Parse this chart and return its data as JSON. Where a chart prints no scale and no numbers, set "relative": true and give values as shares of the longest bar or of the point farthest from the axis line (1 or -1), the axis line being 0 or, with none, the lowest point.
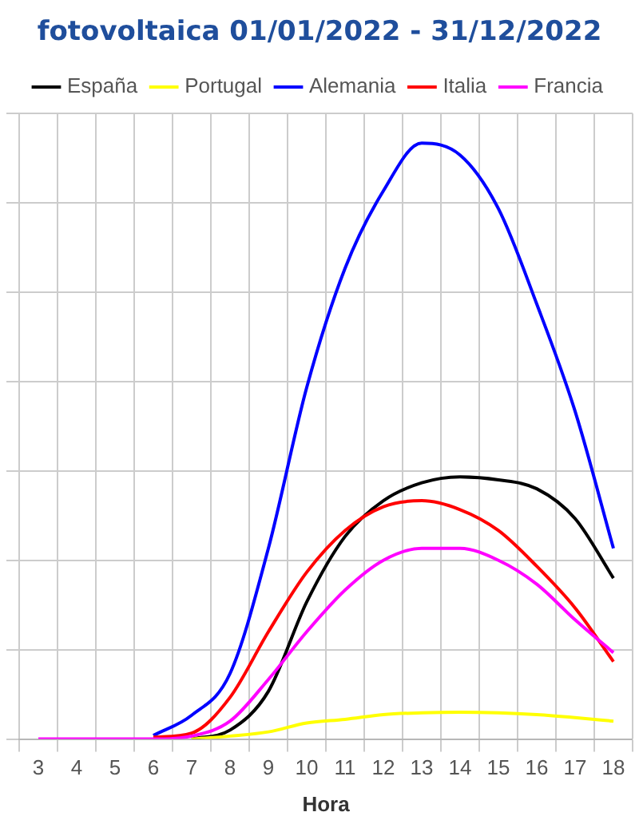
{
  "chart_data": {
    "type": "line",
    "title": "fotovoltaica 01/01/2022 - 31/12/2022",
    "xlabel": "Hora",
    "relative": true,
    "grid": true,
    "legend": "top",
    "marker": "none",
    "line_style": "solid",
    "categories": [
      "3",
      "4",
      "5",
      "6",
      "7",
      "8",
      "9",
      "10",
      "11",
      "12",
      "13",
      "14",
      "15",
      "16",
      "17",
      "18"
    ],
    "series": [
      {
        "name": "España",
        "color": "#000000",
        "values": [
          null,
          null,
          null,
          null,
          0,
          0.015,
          0.08,
          0.23,
          0.34,
          0.4,
          0.43,
          0.44,
          0.435,
          0.42,
          0.37,
          0.27
        ]
      },
      {
        "name": "Portugal",
        "color": "#ffff00",
        "values": [
          null,
          null,
          null,
          null,
          0,
          0.005,
          0.012,
          0.027,
          0.033,
          0.041,
          0.044,
          0.045,
          0.044,
          0.041,
          0.036,
          0.03
        ]
      },
      {
        "name": "Alemania",
        "color": "#0000ff",
        "values": [
          null,
          null,
          null,
          0.006,
          0.04,
          0.11,
          0.32,
          0.59,
          0.79,
          0.92,
          1,
          0.98,
          0.89,
          0.73,
          0.55,
          0.32
        ]
      },
      {
        "name": "Italia",
        "color": "#ff0000",
        "values": [
          null,
          null,
          null,
          0.003,
          0.01,
          0.07,
          0.18,
          0.28,
          0.35,
          0.39,
          0.4,
          0.385,
          0.35,
          0.29,
          0.22,
          0.13
        ]
      },
      {
        "name": "Francia",
        "color": "#ff00ff",
        "values": [
          0,
          0,
          0,
          0,
          0.005,
          0.03,
          0.1,
          0.18,
          0.25,
          0.3,
          0.32,
          0.32,
          0.3,
          0.26,
          0.2,
          0.145
        ]
      }
    ]
  }
}
